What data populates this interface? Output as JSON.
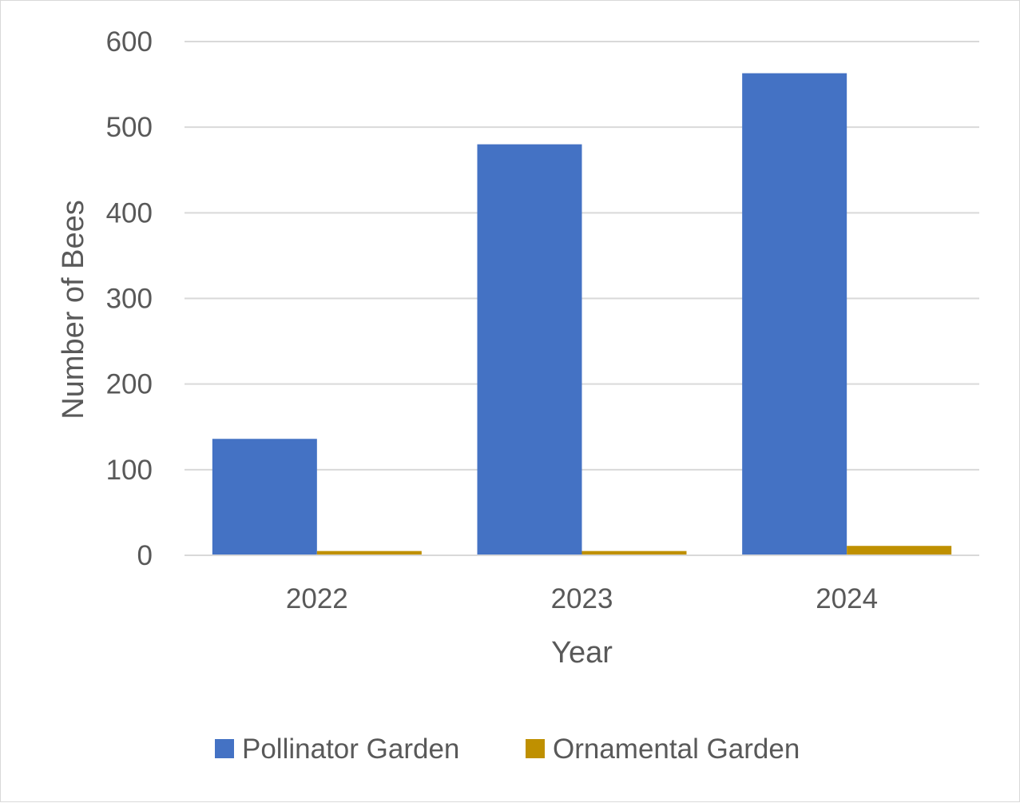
{
  "chart_data": {
    "type": "bar",
    "title": "",
    "xlabel": "Year",
    "ylabel": "Number of Bees",
    "categories": [
      "2022",
      "2023",
      "2024"
    ],
    "series": [
      {
        "name": "Pollinator Garden",
        "color": "#4472c4",
        "values": [
          136,
          480,
          563
        ]
      },
      {
        "name": "Ornamental Garden",
        "color": "#bf9000",
        "values": [
          5,
          5,
          11
        ]
      }
    ],
    "ylim": [
      0,
      600
    ],
    "yticks": [
      0,
      100,
      200,
      300,
      400,
      500,
      600
    ],
    "grid": true,
    "legend_position": "bottom"
  }
}
